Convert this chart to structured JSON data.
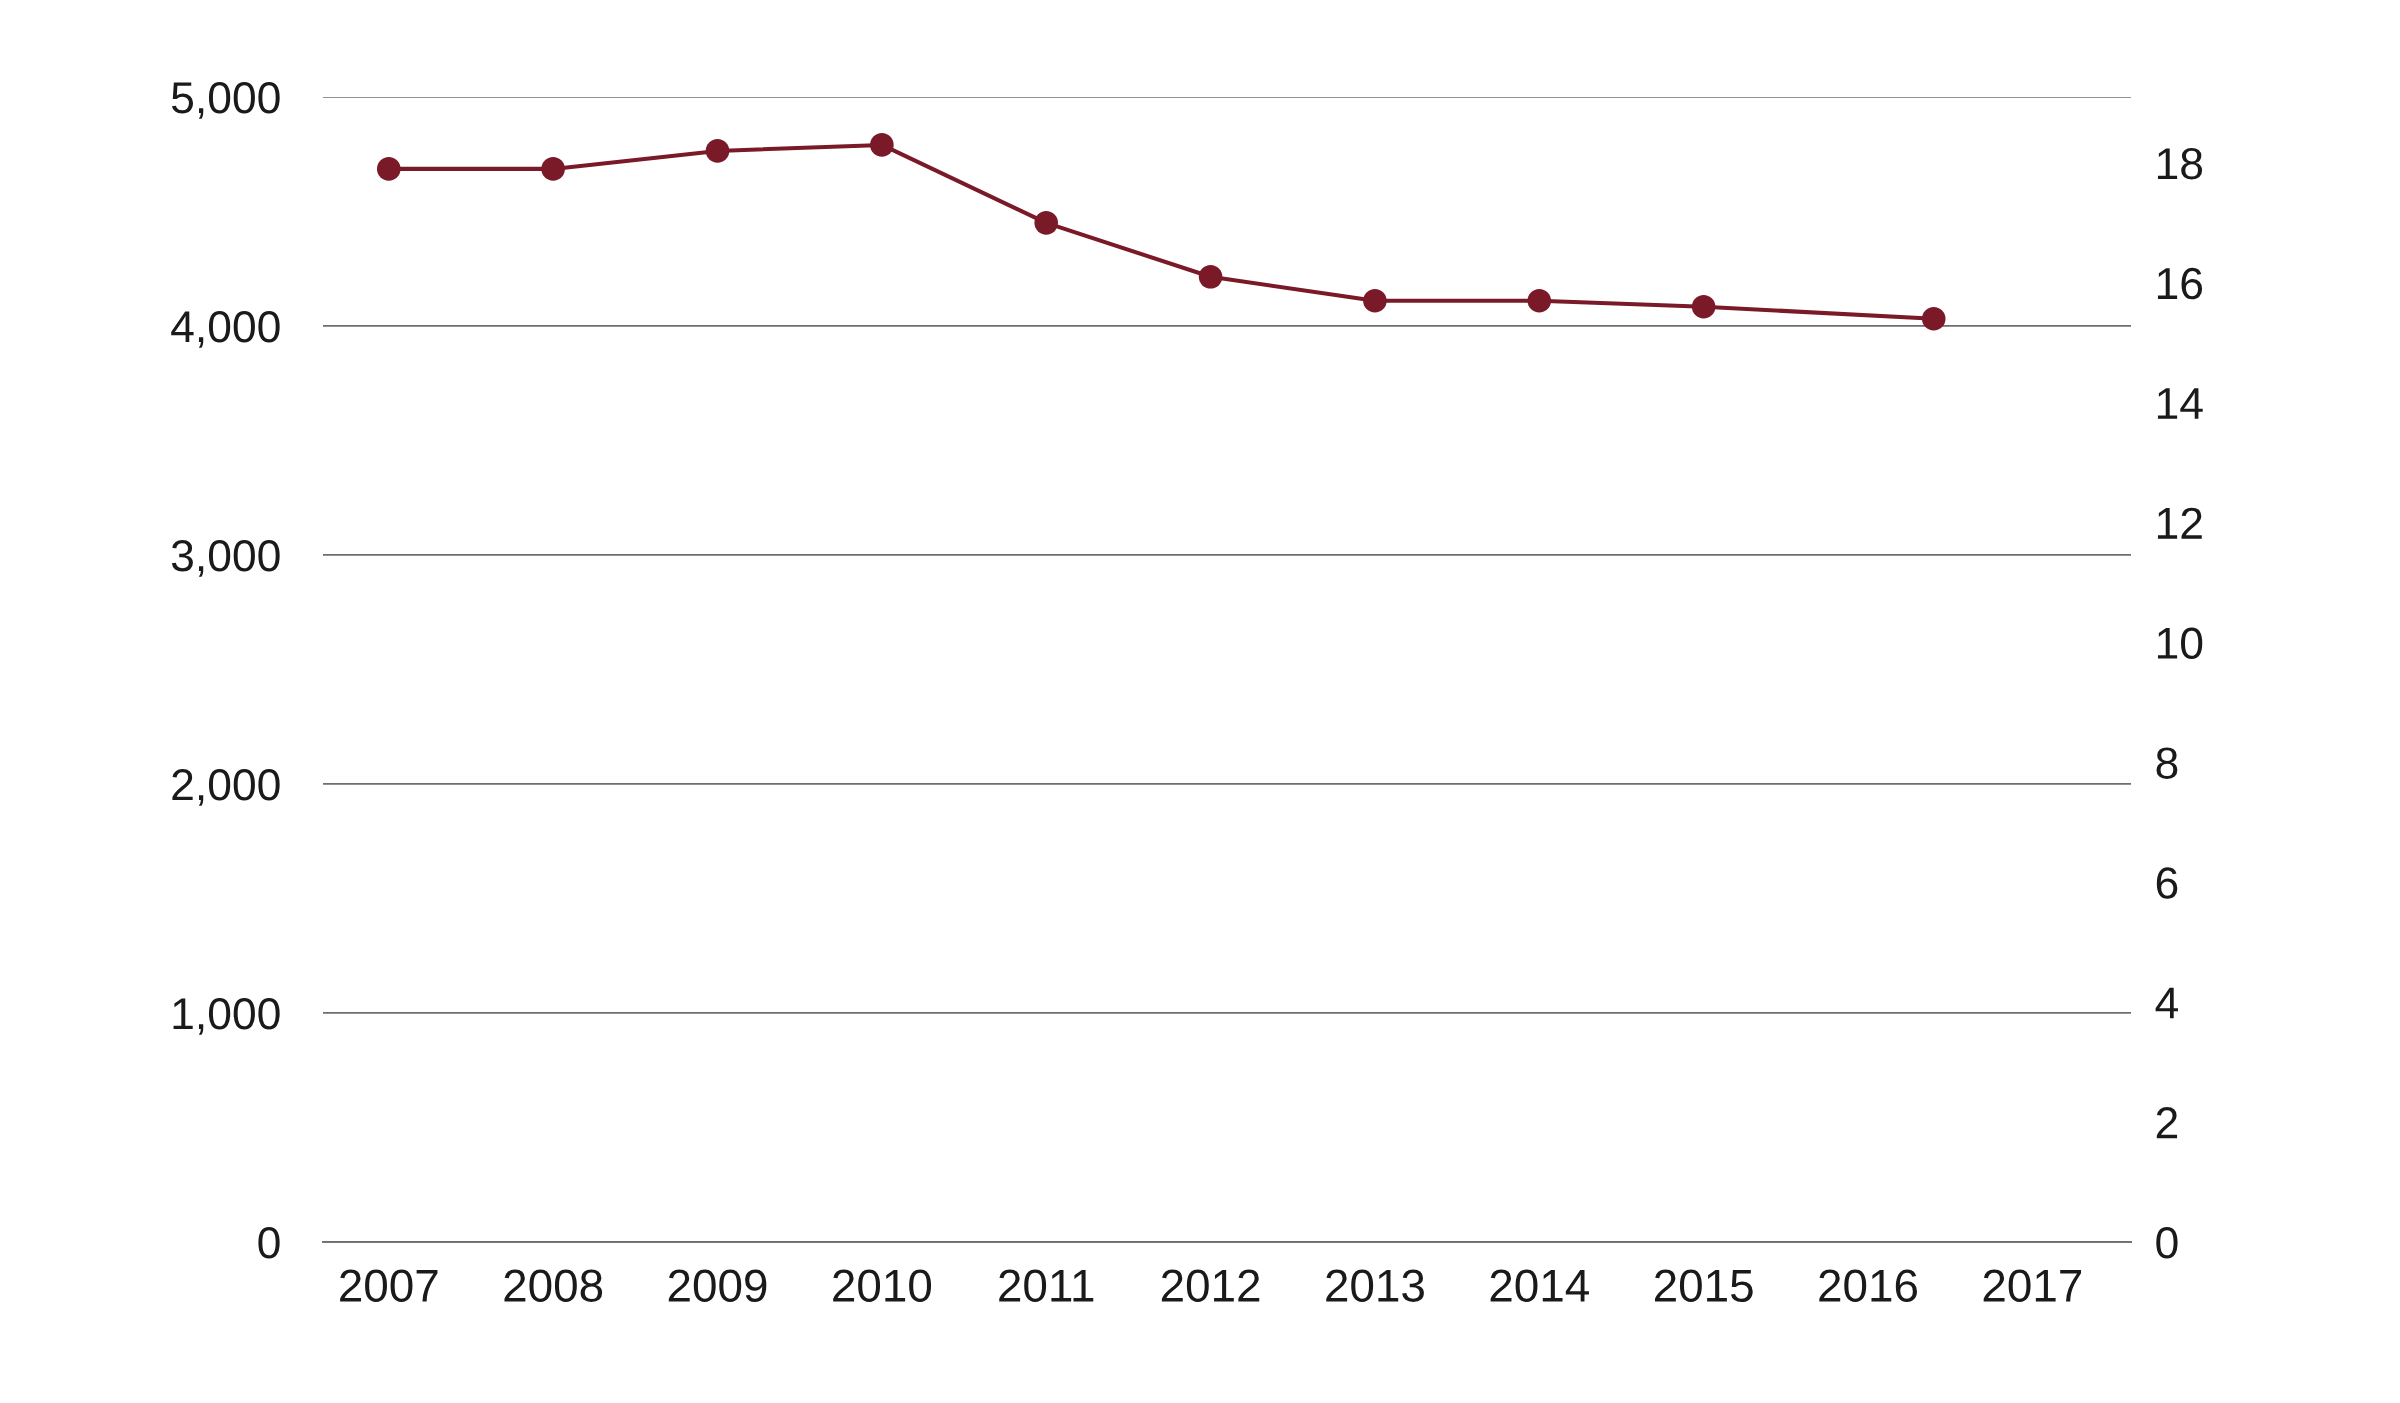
{
  "chart_data": {
    "type": "line",
    "x": [
      2007,
      2008,
      2009,
      2010,
      2011,
      2012,
      2013,
      2014,
      2015,
      2016.4
    ],
    "xlim": [
      2006.6,
      2017.6
    ],
    "xticks": [
      2007,
      2008,
      2009,
      2010,
      2011,
      2012,
      2013,
      2014,
      2015,
      2016,
      2017
    ],
    "ylim": [
      0,
      5000
    ],
    "yticks": [
      0,
      {
        "value": 1000,
        "label": "1,000"
      },
      {
        "value": 2000,
        "label": "2,000"
      },
      {
        "value": 3000,
        "label": "3,000"
      },
      {
        "value": 4000,
        "label": "4,000"
      },
      {
        "value": 5000,
        "label": "5,000"
      }
    ],
    "y2lim": [
      0,
      19.1
    ],
    "y2ticks": [
      0,
      2,
      4,
      6,
      8,
      10,
      12,
      14,
      16,
      18
    ],
    "series": [
      {
        "color": "#7a1a28",
        "axis": "y2",
        "values": [
          17.9,
          17.9,
          18.2,
          18.3,
          17.0,
          16.1,
          15.7,
          15.7,
          15.6,
          15.4
        ]
      }
    ],
    "grid": "y",
    "marker": "circle",
    "line_style": "solid"
  }
}
